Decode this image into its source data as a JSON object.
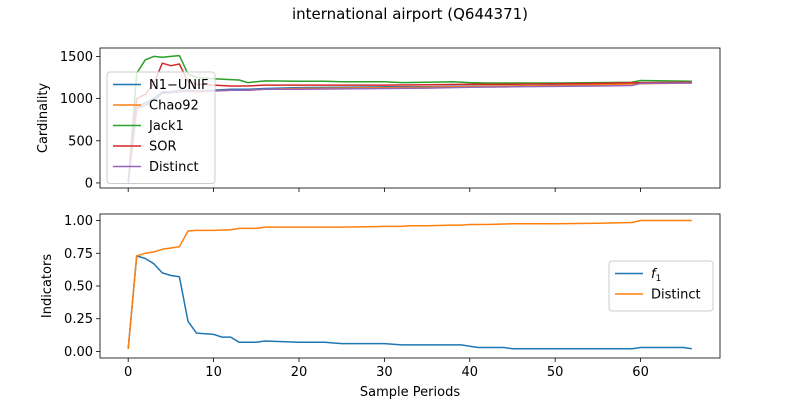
{
  "chart_data": {
    "title": "international airport (Q644371)",
    "panels": [
      {
        "type": "line",
        "ylabel": "Cardinality",
        "xlim": [
          -3.3,
          69.3
        ],
        "ylim": [
          -60,
          1600
        ],
        "yticks": [
          0,
          500,
          1000,
          1500
        ],
        "legend_position": "center-left",
        "series": [
          {
            "name": "N1−UNIF",
            "color": "#1f77b4",
            "x": [
              0,
              1,
              2,
              3,
              4,
              5,
              6,
              7,
              8,
              10,
              12,
              14,
              16,
              20,
              25,
              30,
              35,
              40,
              45,
              50,
              55,
              60,
              66
            ],
            "y": [
              0,
              900,
              950,
              1000,
              1080,
              1080,
              1100,
              1100,
              1090,
              1100,
              1110,
              1110,
              1120,
              1130,
              1135,
              1140,
              1140,
              1150,
              1150,
              1160,
              1170,
              1180,
              1190
            ]
          },
          {
            "name": "Chao92",
            "color": "#ff7f0e",
            "x": [
              0,
              1,
              2,
              3,
              4,
              5,
              6,
              7,
              8,
              10,
              12,
              14,
              16,
              20,
              25,
              30,
              35,
              40,
              45,
              50,
              55,
              60,
              66
            ],
            "y": [
              0,
              880,
              920,
              980,
              1060,
              1070,
              1090,
              1090,
              1080,
              1090,
              1100,
              1100,
              1110,
              1120,
              1125,
              1130,
              1135,
              1145,
              1150,
              1155,
              1165,
              1175,
              1185
            ]
          },
          {
            "name": "Jack1",
            "color": "#2ca02c",
            "x": [
              0,
              1,
              2,
              3,
              4,
              5,
              6,
              7,
              8,
              10,
              12,
              13,
              14,
              16,
              20,
              23,
              25,
              30,
              32,
              35,
              38,
              40,
              42,
              45,
              50,
              55,
              59,
              60,
              66
            ],
            "y": [
              0,
              1300,
              1460,
              1500,
              1490,
              1500,
              1510,
              1290,
              1250,
              1235,
              1225,
              1220,
              1190,
              1210,
              1205,
              1205,
              1200,
              1200,
              1190,
              1195,
              1200,
              1190,
              1185,
              1185,
              1185,
              1190,
              1195,
              1215,
              1205
            ]
          },
          {
            "name": "SOR",
            "color": "#d62728",
            "x": [
              0,
              1,
              2,
              3,
              4,
              5,
              6,
              7,
              8,
              10,
              12,
              14,
              16,
              20,
              25,
              30,
              35,
              40,
              45,
              50,
              55,
              60,
              66
            ],
            "y": [
              0,
              1000,
              1050,
              1180,
              1420,
              1390,
              1410,
              1200,
              1170,
              1160,
              1150,
              1150,
              1160,
              1160,
              1160,
              1160,
              1165,
              1170,
              1170,
              1175,
              1180,
              1190,
              1195
            ]
          },
          {
            "name": "Distinct",
            "color": "#9467bd",
            "x": [
              0,
              1,
              2,
              3,
              4,
              5,
              6,
              7,
              8,
              10,
              12,
              14,
              16,
              20,
              25,
              30,
              35,
              40,
              45,
              50,
              55,
              59,
              60,
              66
            ],
            "y": [
              0,
              880,
              920,
              980,
              1060,
              1070,
              1080,
              1090,
              1090,
              1090,
              1100,
              1100,
              1110,
              1110,
              1115,
              1120,
              1125,
              1135,
              1140,
              1145,
              1150,
              1155,
              1180,
              1185
            ]
          }
        ]
      },
      {
        "type": "line",
        "xlabel": "Sample Periods",
        "ylabel": "Indicators",
        "xlim": [
          -3.3,
          69.3
        ],
        "ylim": [
          -0.05,
          1.05
        ],
        "yticks": [
          0.0,
          0.25,
          0.5,
          0.75,
          1.0
        ],
        "ytick_labels": [
          "0.00",
          "0.25",
          "0.50",
          "0.75",
          "1.00"
        ],
        "xticks": [
          0,
          10,
          20,
          30,
          40,
          50,
          60
        ],
        "xtick_labels": [
          "0",
          "10",
          "20",
          "30",
          "40",
          "50",
          "60"
        ],
        "legend_position": "center-right",
        "series": [
          {
            "name": "f1",
            "name_base": "f",
            "name_sub": "1",
            "color": "#1f77b4",
            "x": [
              0,
              1,
              2,
              3,
              4,
              5,
              6,
              7,
              8,
              10,
              11,
              12,
              13,
              14,
              15,
              16,
              20,
              23,
              25,
              30,
              32,
              33,
              35,
              38,
              39,
              40,
              41,
              43,
              44,
              45,
              46,
              50,
              52,
              55,
              59,
              60,
              64,
              65,
              66
            ],
            "y": [
              0.02,
              0.73,
              0.71,
              0.67,
              0.6,
              0.58,
              0.57,
              0.23,
              0.14,
              0.13,
              0.11,
              0.11,
              0.07,
              0.07,
              0.07,
              0.08,
              0.07,
              0.07,
              0.06,
              0.06,
              0.05,
              0.05,
              0.05,
              0.05,
              0.05,
              0.04,
              0.03,
              0.03,
              0.03,
              0.02,
              0.02,
              0.02,
              0.02,
              0.02,
              0.02,
              0.03,
              0.03,
              0.03,
              0.02
            ]
          },
          {
            "name": "Distinct",
            "color": "#ff7f0e",
            "x": [
              0,
              1,
              2,
              3,
              4,
              5,
              6,
              7,
              8,
              10,
              12,
              13,
              14,
              15,
              16,
              20,
              25,
              30,
              32,
              33,
              35,
              38,
              39,
              40,
              42,
              45,
              50,
              55,
              59,
              60,
              66
            ],
            "y": [
              0.02,
              0.73,
              0.75,
              0.76,
              0.78,
              0.79,
              0.8,
              0.92,
              0.925,
              0.925,
              0.93,
              0.94,
              0.94,
              0.94,
              0.95,
              0.95,
              0.95,
              0.955,
              0.955,
              0.96,
              0.96,
              0.965,
              0.965,
              0.97,
              0.97,
              0.975,
              0.975,
              0.98,
              0.985,
              1.0,
              1.0
            ]
          }
        ]
      }
    ]
  }
}
